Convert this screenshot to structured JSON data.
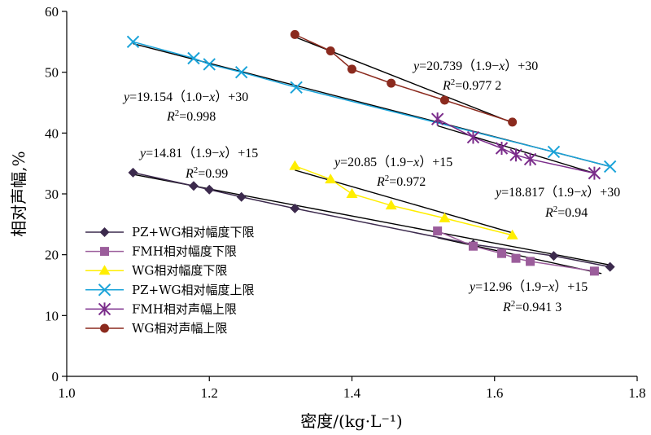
{
  "chart_data": {
    "type": "scatter",
    "xlabel": "密度/(kg·L⁻¹)",
    "ylabel": "相对声幅,%",
    "xlim": [
      1.0,
      1.8
    ],
    "ylim": [
      0,
      60
    ],
    "x_ticks": [
      "1.0",
      "1.2",
      "1.4",
      "1.6",
      "1.8"
    ],
    "y_ticks": [
      "0",
      "10",
      "20",
      "30",
      "40",
      "50",
      "60"
    ],
    "grid": false,
    "legend_position": "bottom-left",
    "series": [
      {
        "name": "PZ+WG相对幅度下限",
        "marker": "diamond",
        "color": "#3c2a4d",
        "x": [
          1.093,
          1.178,
          1.2,
          1.245,
          1.32,
          1.57,
          1.683,
          1.762
        ],
        "y": [
          33.5,
          31.3,
          30.7,
          29.5,
          27.6,
          21.7,
          19.8,
          18.0
        ],
        "trend": [
          [
            1.093,
            33.2
          ],
          [
            1.762,
            18.3
          ]
        ]
      },
      {
        "name": "FMH相对幅度下限",
        "marker": "square",
        "color": "#9b5d9b",
        "x": [
          1.52,
          1.57,
          1.61,
          1.63,
          1.65,
          1.74
        ],
        "y": [
          23.9,
          21.4,
          20.2,
          19.4,
          18.9,
          17.3
        ],
        "trend": [
          [
            1.52,
            22.8
          ],
          [
            1.75,
            16.9
          ]
        ]
      },
      {
        "name": "WG相对幅度下限",
        "marker": "triangle",
        "color": "#ffee00",
        "x": [
          1.32,
          1.37,
          1.4,
          1.455,
          1.53,
          1.625
        ],
        "y": [
          34.6,
          32.4,
          30.0,
          28.1,
          26.0,
          23.2
        ],
        "trend": [
          [
            1.32,
            33.9
          ],
          [
            1.625,
            23.6
          ]
        ]
      },
      {
        "name": "PZ+WG相对幅度上限",
        "marker": "x",
        "color": "#1aa3d9",
        "x": [
          1.093,
          1.178,
          1.2,
          1.245,
          1.322,
          1.683,
          1.762
        ],
        "y": [
          55.0,
          52.3,
          51.3,
          50.0,
          47.5,
          36.9,
          34.5
        ],
        "trend": [
          [
            1.093,
            54.7
          ],
          [
            1.762,
            34.5
          ]
        ]
      },
      {
        "name": "FMH相对声幅上限",
        "marker": "star",
        "color": "#7b2d8b",
        "x": [
          1.52,
          1.57,
          1.61,
          1.63,
          1.65,
          1.74
        ],
        "y": [
          42.3,
          39.3,
          37.5,
          36.4,
          35.7,
          33.4
        ],
        "trend": [
          [
            1.52,
            41.2
          ],
          [
            1.74,
            33.4
          ]
        ]
      },
      {
        "name": "WG相对声幅上限",
        "marker": "circle",
        "color": "#8b2a1e",
        "x": [
          1.32,
          1.37,
          1.4,
          1.455,
          1.53,
          1.625
        ],
        "y": [
          56.2,
          53.5,
          50.5,
          48.2,
          45.4,
          41.8
        ],
        "trend": [
          [
            1.32,
            55.8
          ],
          [
            1.625,
            41.7
          ]
        ]
      }
    ],
    "annotations": [
      {
        "line1_pre": "y",
        "line1_post": "=20.739（1.9−",
        "line1_var": "x",
        "line1_end": "）+30",
        "r2": "=0.977 2"
      },
      {
        "line1_pre": "y",
        "line1_post": "=19.154（1.0−",
        "line1_var": "x",
        "line1_end": "）+30",
        "r2": "=0.998"
      },
      {
        "line1_pre": "y",
        "line1_post": "=14.81（1.9−",
        "line1_var": "x",
        "line1_end": "）+15",
        "r2": "=0.99"
      },
      {
        "line1_pre": "y",
        "line1_post": "=20.85（1.9−",
        "line1_var": "x",
        "line1_end": "）+15",
        "r2": "=0.972"
      },
      {
        "line1_pre": "y",
        "line1_post": "=18.817（1.9−",
        "line1_var": "x",
        "line1_end": "）+30",
        "r2": "=0.94"
      },
      {
        "line1_pre": "y",
        "line1_post": "=12.96（1.9−",
        "line1_var": "x",
        "line1_end": "）+15",
        "r2": "=0.941 3"
      }
    ]
  }
}
